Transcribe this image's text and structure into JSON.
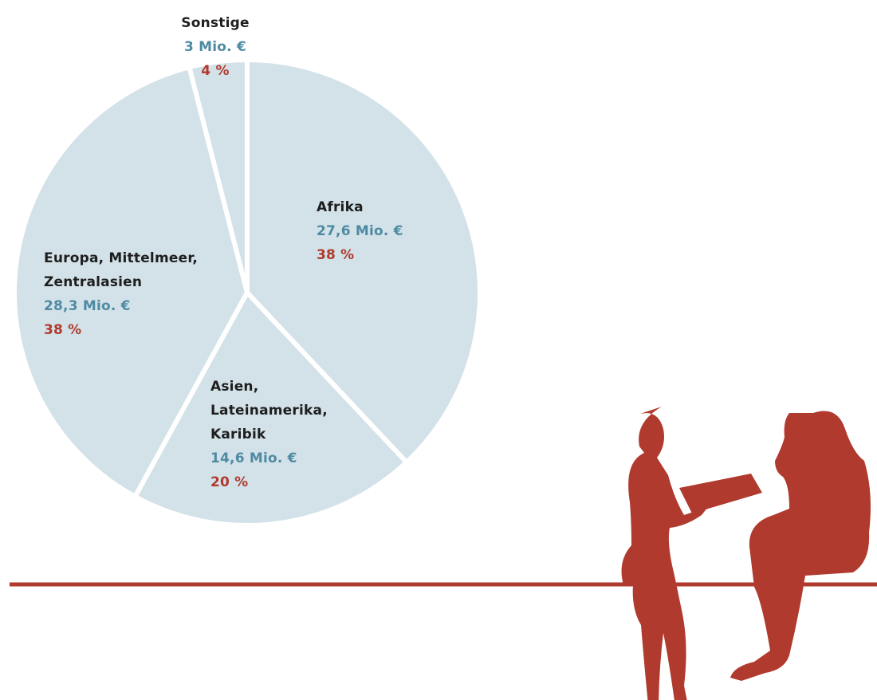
{
  "chart_data": {
    "type": "pie",
    "categories": [
      "Afrika",
      "Asien,\nLateinamerika,\nKaribik",
      "Europa, Mittelmeer,\nZentralasien",
      "Sonstige"
    ],
    "values": [
      38,
      20,
      38,
      4
    ],
    "value_labels": [
      "38 %",
      "20 %",
      "38 %",
      "4 %"
    ],
    "amount_labels": [
      "27,6 Mio. €",
      "14,6 Mio. €",
      "28,3 Mio. €",
      "3 Mio. €"
    ],
    "color": "#d3e2e8"
  }
}
